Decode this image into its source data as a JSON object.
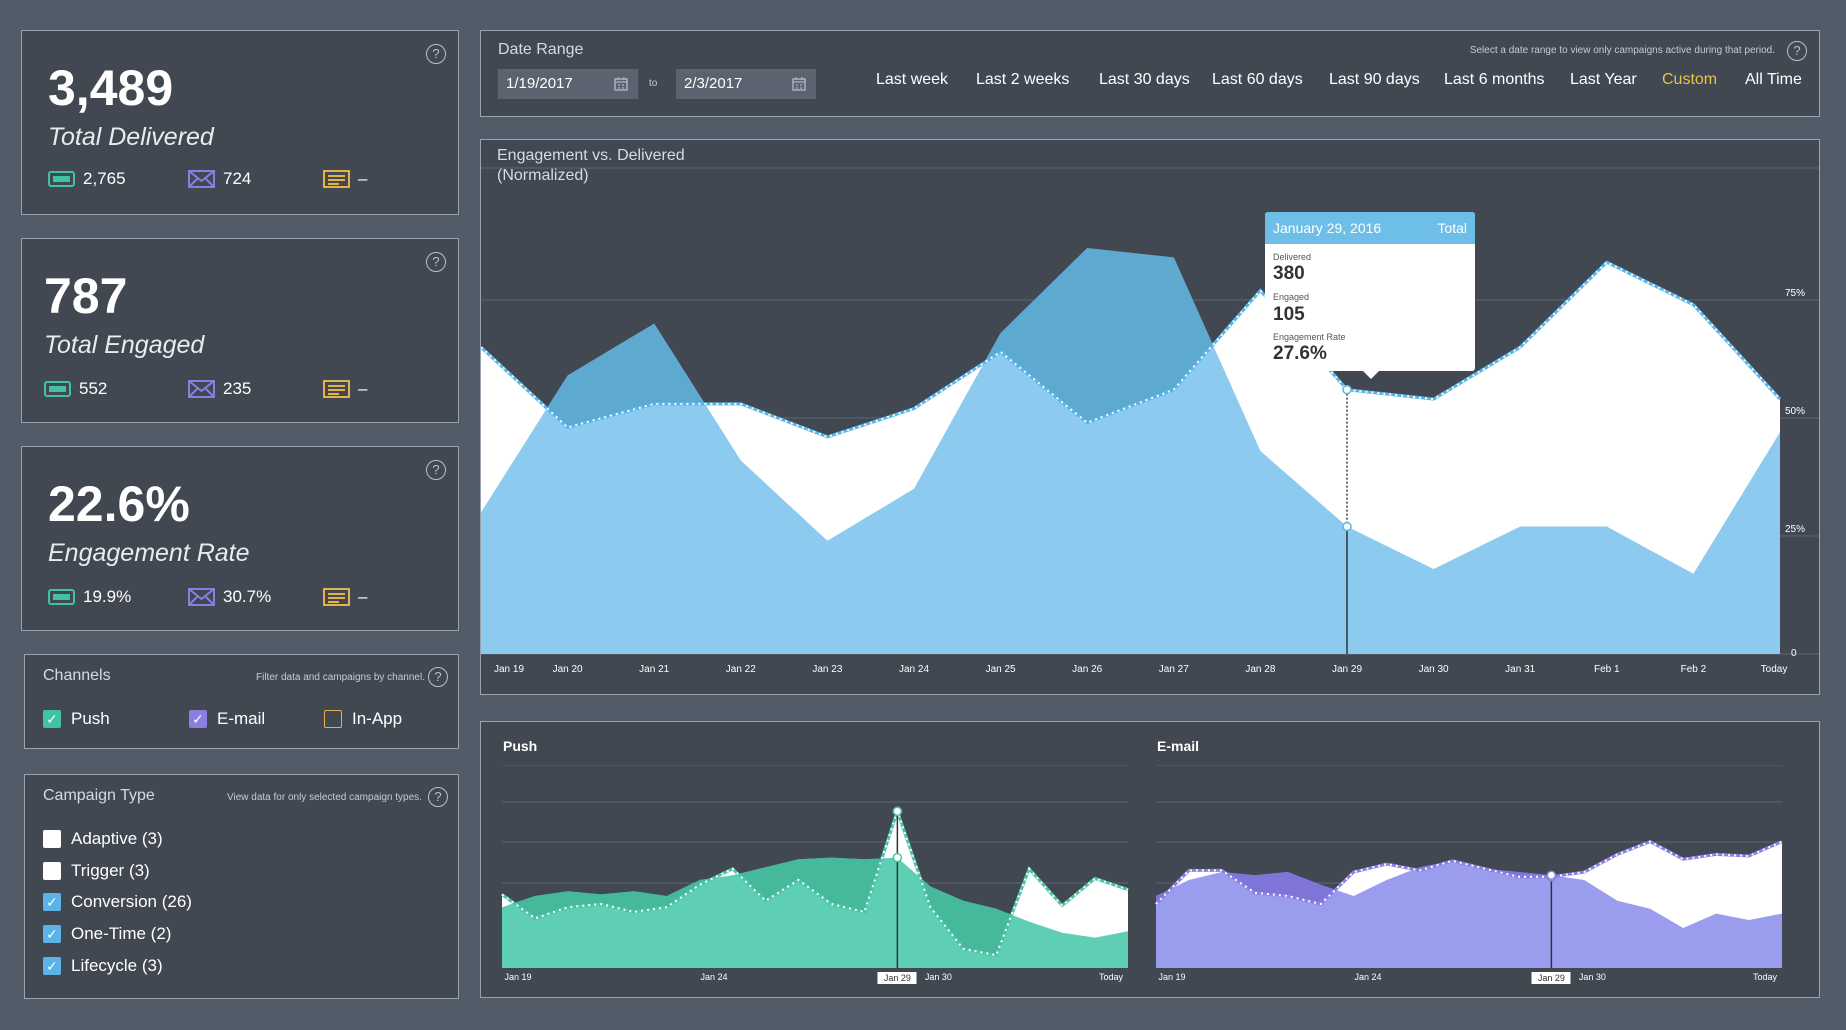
{
  "summary_cards": [
    {
      "value": "3,489",
      "label": "Total Delivered",
      "push": "2,765",
      "email": "724",
      "inapp": "–"
    },
    {
      "value": "787",
      "label": "Total Engaged",
      "push": "552",
      "email": "235",
      "inapp": "–"
    },
    {
      "value": "22.6%",
      "label": "Engagement Rate",
      "push": "19.9%",
      "email": "30.7%",
      "inapp": "–"
    }
  ],
  "help_symbol": "?",
  "channels": {
    "title": "Channels",
    "hint": "Filter data and campaigns by channel.",
    "items": [
      {
        "label": "Push",
        "checked": true,
        "color": "#3fc2a6"
      },
      {
        "label": "E-mail",
        "checked": true,
        "color": "#8a7fe0"
      },
      {
        "label": "In-App",
        "checked": false,
        "color": "#e3b34a"
      }
    ]
  },
  "campaign_type": {
    "title": "Campaign Type",
    "hint": "View data for only selected campaign types.",
    "items": [
      {
        "label": "Adaptive (3)",
        "checked": false
      },
      {
        "label": "Trigger (3)",
        "checked": false
      },
      {
        "label": "Conversion (26)",
        "checked": true
      },
      {
        "label": "One-Time (2)",
        "checked": true
      },
      {
        "label": "Lifecycle (3)",
        "checked": true
      }
    ]
  },
  "date_range": {
    "title": "Date Range",
    "from": "1/19/2017",
    "to_label": "to",
    "to": "2/3/2017",
    "hint": "Select a date range to view only campaigns active during that period.",
    "options": [
      "Last week",
      "Last 2 weeks",
      "Last 30 days",
      "Last 60 days",
      "Last 90 days",
      "Last 6 months",
      "Last Year",
      "Custom",
      "All Time"
    ],
    "active_option": "Custom",
    "active_color": "#e8c24a"
  },
  "main_chart_title": [
    "Engagement vs. Delivered",
    "(Normalized)"
  ],
  "tooltip": {
    "date": "January 29, 2016",
    "scope": "Total",
    "delivered_label": "Delivered",
    "delivered": "380",
    "engaged_label": "Engaged",
    "engaged": "105",
    "rate_label": "Engagement Rate",
    "rate": "27.6%"
  },
  "colors": {
    "delivered_fill": "#8ccbef",
    "engaged_dark": "#5ea9cf",
    "push": "#5ecfb4",
    "email": "#9a9cee",
    "email_dark": "#7f74d8"
  },
  "chart_data": [
    {
      "type": "area",
      "x": [
        "Jan 19",
        "Jan 20",
        "Jan 21",
        "Jan 22",
        "Jan 23",
        "Jan 24",
        "Jan 25",
        "Jan 26",
        "Jan 27",
        "Jan 28",
        "Jan 29",
        "Jan 30",
        "Jan 31",
        "Feb 1",
        "Feb 2",
        "Today"
      ],
      "yticks": [
        "0",
        "25%",
        "50%",
        "75%"
      ],
      "ylim": [
        0,
        1
      ],
      "series": [
        {
          "name": "Delivered",
          "values": [
            0.3,
            0.59,
            0.7,
            0.41,
            0.24,
            0.35,
            0.68,
            0.86,
            0.84,
            0.43,
            0.27,
            0.18,
            0.27,
            0.27,
            0.17,
            0.47
          ],
          "style": "area"
        },
        {
          "name": "Engaged",
          "values": [
            0.65,
            0.48,
            0.53,
            0.53,
            0.46,
            0.52,
            0.64,
            0.49,
            0.56,
            0.77,
            0.56,
            0.54,
            0.65,
            0.83,
            0.74,
            0.54
          ],
          "style": "dotted-line"
        }
      ],
      "highlight_x": "Jan 29",
      "grid": true
    },
    {
      "type": "area",
      "title": "Push",
      "xticks": [
        "Jan 19",
        "Jan 24",
        "Jan 29",
        "Jan 30",
        "Today"
      ],
      "highlight_x": "Jan 29",
      "series": [
        {
          "values": [
            0.38,
            0.45,
            0.48,
            0.46,
            0.48,
            0.45,
            0.55,
            0.58,
            0.63,
            0.68,
            0.69,
            0.68,
            0.69,
            0.51,
            0.42,
            0.37,
            0.29,
            0.22,
            0.19,
            0.23
          ]
        },
        {
          "values": [
            0.46,
            0.31,
            0.38,
            0.4,
            0.35,
            0.38,
            0.52,
            0.62,
            0.42,
            0.55,
            0.4,
            0.35,
            0.98,
            0.38,
            0.12,
            0.08,
            0.62,
            0.39,
            0.56,
            0.49
          ]
        }
      ]
    },
    {
      "type": "area",
      "title": "E-mail",
      "xticks": [
        "Jan 19",
        "Jan 24",
        "Jan 29",
        "Jan 30",
        "Today"
      ],
      "highlight_x": "Jan 29",
      "series": [
        {
          "values": [
            0.45,
            0.55,
            0.6,
            0.58,
            0.6,
            0.52,
            0.45,
            0.55,
            0.63,
            0.67,
            0.62,
            0.6,
            0.58,
            0.55,
            0.42,
            0.37,
            0.25,
            0.34,
            0.3,
            0.34
          ]
        },
        {
          "values": [
            0.4,
            0.61,
            0.61,
            0.47,
            0.45,
            0.4,
            0.6,
            0.65,
            0.61,
            0.67,
            0.62,
            0.57,
            0.57,
            0.6,
            0.71,
            0.79,
            0.68,
            0.71,
            0.7,
            0.79
          ]
        }
      ]
    }
  ]
}
